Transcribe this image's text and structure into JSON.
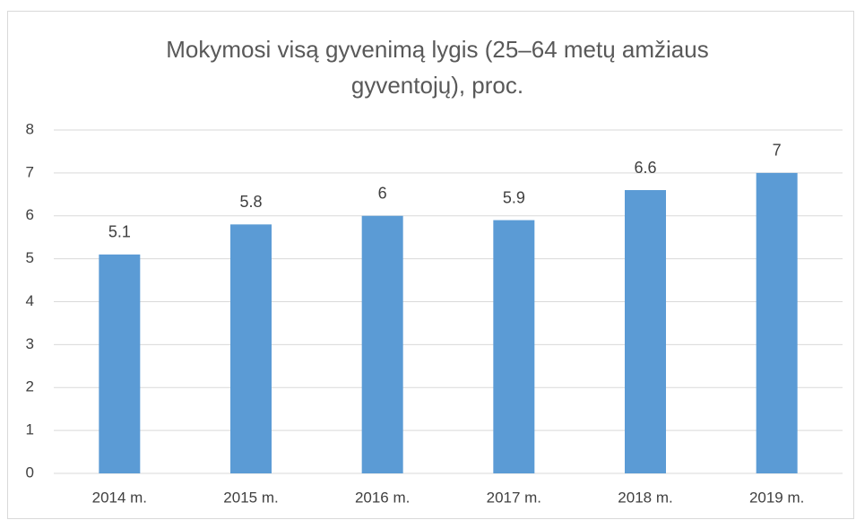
{
  "chart_data": {
    "type": "bar",
    "title": [
      "Mokymosi visą gyvenimą lygis (25–64 metų amžiaus",
      "gyventojų), proc."
    ],
    "categories": [
      "2014 m.",
      "2015 m.",
      "2016 m.",
      "2017 m.",
      "2018 m.",
      "2019 m."
    ],
    "values": [
      5.1,
      5.8,
      6,
      5.9,
      6.6,
      7
    ],
    "color": "#5b9bd5",
    "ylim": [
      0,
      8
    ],
    "yticks": [
      0,
      1,
      2,
      3,
      4,
      5,
      6,
      7,
      8
    ],
    "grid": true
  }
}
